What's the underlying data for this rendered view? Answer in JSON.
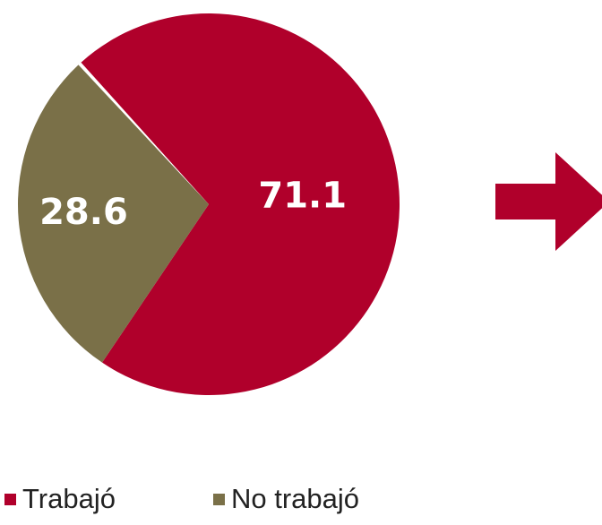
{
  "chart_data": {
    "type": "pie",
    "categories": [
      "Trabajó",
      "No trabajó"
    ],
    "values": [
      71.1,
      28.6
    ],
    "colors": [
      "#b0002b",
      "#7a7048"
    ],
    "legend": "bottom"
  }
}
